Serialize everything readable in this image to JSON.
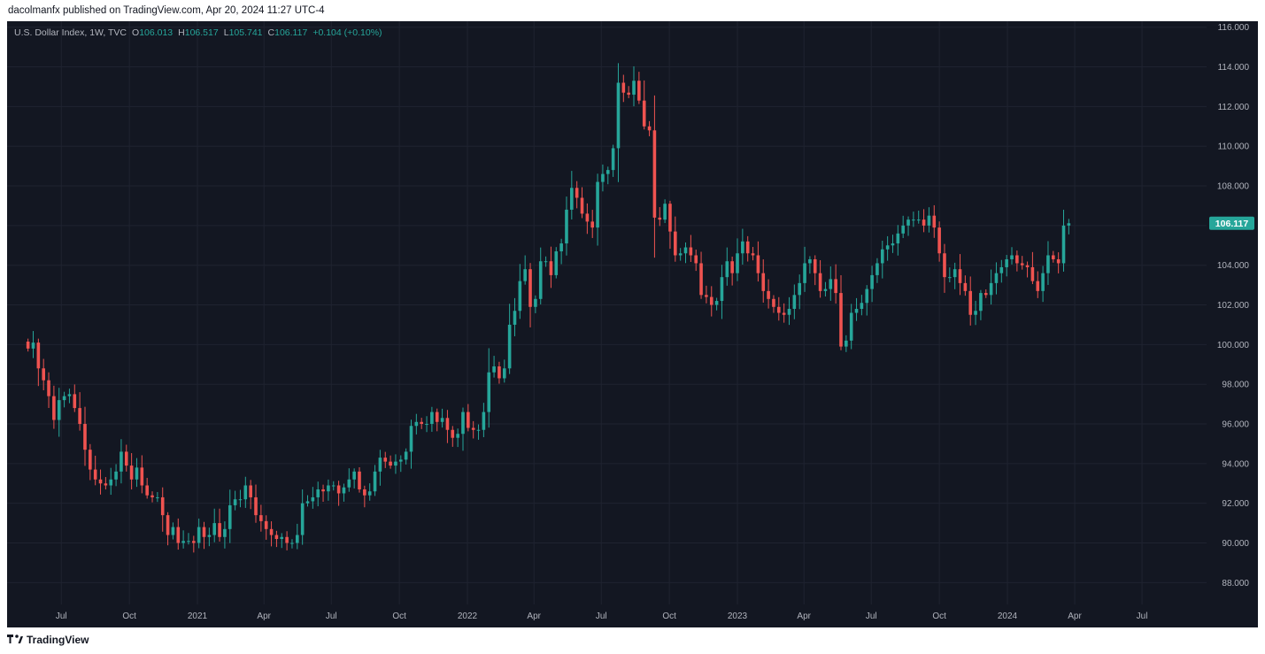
{
  "header": {
    "publisher_text": "dacolmanfx published on TradingView.com, Apr 20, 2024 11:27 UTC-4"
  },
  "legend": {
    "symbol": "U.S. Dollar Index, 1W, TVC",
    "open_label": "O",
    "open": "106.013",
    "high_label": "H",
    "high": "106.517",
    "low_label": "L",
    "low": "105.741",
    "close_label": "C",
    "close": "106.117",
    "change": "+0.104 (+0.10%)"
  },
  "branding": {
    "name": "TradingView"
  },
  "colors": {
    "up": "#26a69a",
    "down": "#ef5350",
    "background": "#131722",
    "grid": "#1f2330",
    "text": "#b2b5be"
  },
  "chart_data": {
    "type": "candlestick",
    "title": "U.S. Dollar Index, 1W, TVC",
    "interval": "1W",
    "grid": true,
    "y_axis": {
      "position": "right",
      "ylim": [
        86.9,
        116.3
      ],
      "ticks": [
        "88.000",
        "90.000",
        "92.000",
        "94.000",
        "96.000",
        "98.000",
        "100.000",
        "102.000",
        "104.000",
        "106.000",
        "108.000",
        "110.000",
        "112.000",
        "114.000",
        "116.000"
      ]
    },
    "x_axis": {
      "tick_labels": [
        "Jul",
        "Oct",
        "2021",
        "Apr",
        "Jul",
        "Oct",
        "2022",
        "Apr",
        "Jul",
        "Oct",
        "2023",
        "Apr",
        "Jul",
        "Oct",
        "2024",
        "Apr",
        "Jul"
      ],
      "tick_dates": [
        "2020-07",
        "2020-10",
        "2021-01",
        "2021-04",
        "2021-07",
        "2021-10",
        "2022-01",
        "2022-04",
        "2022-07",
        "2022-10",
        "2023-01",
        "2023-04",
        "2023-07",
        "2023-10",
        "2024-01",
        "2024-04",
        "2024-07"
      ]
    },
    "first_week": "2020-05-17",
    "last_price": "106.117",
    "closes": [
      99.8,
      100.1,
      98.8,
      98.2,
      97.4,
      96.2,
      97.2,
      97.4,
      97.5,
      96.8,
      96.0,
      94.7,
      93.7,
      93.2,
      93.0,
      92.9,
      93.2,
      93.6,
      94.6,
      93.9,
      93.2,
      93.8,
      92.9,
      92.4,
      92.3,
      92.3,
      91.4,
      90.4,
      90.8,
      90.0,
      90.1,
      90.1,
      90.0,
      90.8,
      90.3,
      90.4,
      91.0,
      90.3,
      90.7,
      91.9,
      92.2,
      92.2,
      92.9,
      92.3,
      91.4,
      91.1,
      90.7,
      90.4,
      90.2,
      90.3,
      90.0,
      90.0,
      90.4,
      92.0,
      92.1,
      92.3,
      92.7,
      92.6,
      92.9,
      92.9,
      92.5,
      92.8,
      93.2,
      93.6,
      92.7,
      92.4,
      92.6,
      93.6,
      94.3,
      94.1,
      93.9,
      94.1,
      94.2,
      94.6,
      95.9,
      96.1,
      96.0,
      96.0,
      96.6,
      96.1,
      96.3,
      95.7,
      95.3,
      95.5,
      96.6,
      95.8,
      95.7,
      95.7,
      96.6,
      98.6,
      98.9,
      98.3,
      98.8,
      101.0,
      101.7,
      103.2,
      103.8,
      101.9,
      102.3,
      104.2,
      104.2,
      103.5,
      104.7,
      105.1,
      106.8,
      107.9,
      107.4,
      106.6,
      106.2,
      105.9,
      108.2,
      108.6,
      108.8,
      109.9,
      113.2,
      112.7,
      112.6,
      113.3,
      112.3,
      111.0,
      110.8,
      106.4,
      106.3,
      107.1,
      105.7,
      104.5,
      104.6,
      104.9,
      104.5,
      104.1,
      102.5,
      102.4,
      102.0,
      102.2,
      103.4,
      104.2,
      103.6,
      104.6,
      105.2,
      104.6,
      104.5,
      103.6,
      102.7,
      102.3,
      101.9,
      101.6,
      101.5,
      101.8,
      102.5,
      103.1,
      104.1,
      104.3,
      103.6,
      102.7,
      102.8,
      103.3,
      102.6,
      99.9,
      100.2,
      101.6,
      101.8,
      102.1,
      102.8,
      103.5,
      104.1,
      104.8,
      105.0,
      105.1,
      105.6,
      106.0,
      106.3,
      106.3,
      106.3,
      106.0,
      106.5,
      105.9,
      104.6,
      103.4,
      103.4,
      103.8,
      103.1,
      102.7,
      101.5,
      101.7,
      102.6,
      102.5,
      103.1,
      103.6,
      103.9,
      104.3,
      104.5,
      104.1,
      104.0,
      103.9,
      103.2,
      102.7,
      103.6,
      104.5,
      104.3,
      104.1,
      106.0,
      106.117
    ]
  }
}
